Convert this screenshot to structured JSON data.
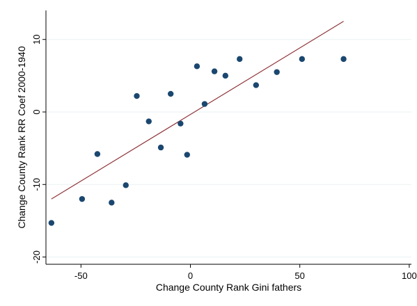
{
  "chart_data": {
    "type": "scatter",
    "title": "",
    "xlabel": "Change County Rank Gini fathers",
    "ylabel": "Change County Rank RR Coef 2000-1940",
    "xlim": [
      -66,
      101
    ],
    "ylim": [
      -21,
      14
    ],
    "xticks": [
      -50,
      0,
      50,
      100
    ],
    "yticks": [
      -20,
      -10,
      0,
      10
    ],
    "grid": "horizontal",
    "colors": {
      "points": "#1a476f",
      "fit_line": "#90353b",
      "grid": "#eaf2f3"
    },
    "series": [
      {
        "type": "scatter",
        "points": [
          {
            "x": -63.5,
            "y": -15.3
          },
          {
            "x": -49.5,
            "y": -12.0
          },
          {
            "x": -42.5,
            "y": -5.8
          },
          {
            "x": -36.0,
            "y": -12.5
          },
          {
            "x": -29.5,
            "y": -10.1
          },
          {
            "x": -24.5,
            "y": 2.2
          },
          {
            "x": -19.0,
            "y": -1.3
          },
          {
            "x": -13.5,
            "y": -4.9
          },
          {
            "x": -9.0,
            "y": 2.5
          },
          {
            "x": -4.5,
            "y": -1.6
          },
          {
            "x": -1.5,
            "y": -5.9
          },
          {
            "x": 3.0,
            "y": 6.3
          },
          {
            "x": 6.5,
            "y": 1.1
          },
          {
            "x": 11.0,
            "y": 5.6
          },
          {
            "x": 16.0,
            "y": 5.0
          },
          {
            "x": 22.5,
            "y": 7.3
          },
          {
            "x": 30.0,
            "y": 3.7
          },
          {
            "x": 39.5,
            "y": 5.5
          },
          {
            "x": 51.0,
            "y": 7.3
          },
          {
            "x": 70.0,
            "y": 7.3
          }
        ]
      },
      {
        "type": "line",
        "points": [
          {
            "x": -63.5,
            "y": -12.0
          },
          {
            "x": 70.0,
            "y": 12.5
          }
        ]
      }
    ]
  }
}
